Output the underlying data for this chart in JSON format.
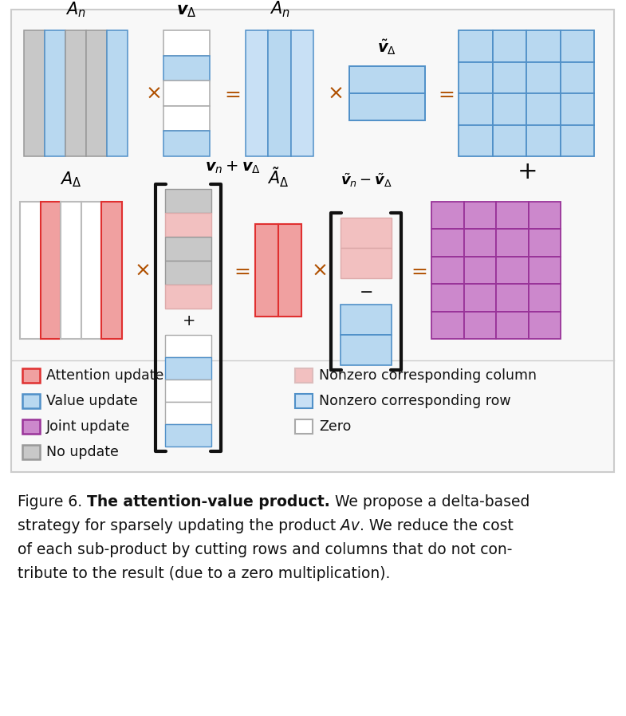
{
  "bg_color": "#ffffff",
  "outer_bg": "#f8f8f8",
  "outer_stroke": "#cccccc",
  "blue_fill": "#b8d8f0",
  "blue_bright": "#80bce8",
  "blue_stroke": "#5090c8",
  "red_fill": "#f0a0a0",
  "red_stroke": "#e03030",
  "pink_fill": "#f2c0c0",
  "gray_fill": "#c8c8c8",
  "gray_stroke": "#999999",
  "purple_fill": "#cc88cc",
  "purple_stroke": "#993399",
  "white_fill": "#ffffff",
  "light_blue_fill": "#c8e0f5",
  "op_color": "#b05000",
  "text_color": "#111111",
  "legend_items_left": [
    {
      "fc": "#f0a0a0",
      "ec": "#e03030",
      "label": "Attention update"
    },
    {
      "fc": "#b8d8f0",
      "ec": "#5090c8",
      "label": "Value update"
    },
    {
      "fc": "#cc88cc",
      "ec": "#993399",
      "label": "Joint update"
    },
    {
      "fc": "#c8c8c8",
      "ec": "#999999",
      "label": "No update"
    }
  ],
  "legend_items_right": [
    {
      "fc": "#f2c0c0",
      "ec": "#ddbbbb",
      "label": "Nonzero corresponding column"
    },
    {
      "fc": "#c8e0f5",
      "ec": "#5090c8",
      "label": "Nonzero corresponding row"
    },
    {
      "fc": "#ffffff",
      "ec": "#aaaaaa",
      "label": "Zero"
    }
  ]
}
